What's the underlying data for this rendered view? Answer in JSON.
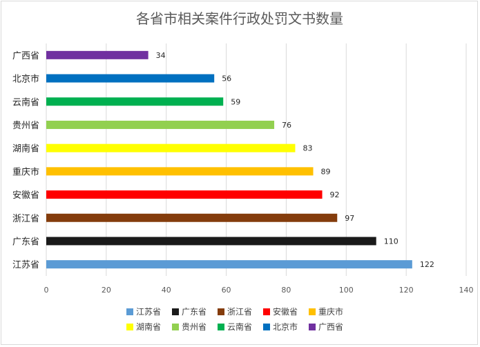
{
  "chart_data": {
    "type": "bar",
    "orientation": "horizontal",
    "title": "各省市相关案件行政处罚文书数量",
    "categories": [
      "江苏省",
      "广东省",
      "浙江省",
      "安徽省",
      "重庆市",
      "湖南省",
      "贵州省",
      "云南省",
      "北京市",
      "广西省"
    ],
    "values": [
      122,
      110,
      97,
      92,
      89,
      83,
      76,
      59,
      56,
      34
    ],
    "colors": [
      "#5b9bd5",
      "#1a1a1a",
      "#843c0c",
      "#ff0000",
      "#ffc000",
      "#ffff00",
      "#92d050",
      "#00b050",
      "#0070c0",
      "#7030a0"
    ],
    "xlim": [
      0,
      140
    ],
    "xticks": [
      0,
      20,
      40,
      60,
      80,
      100,
      120,
      140
    ],
    "gridlines": true,
    "data_labels": true,
    "legend_position": "bottom",
    "legend_order": [
      "江苏省",
      "广东省",
      "浙江省",
      "安徽省",
      "重庆市",
      "湖南省",
      "贵州省",
      "云南省",
      "北京市",
      "广西省"
    ]
  }
}
